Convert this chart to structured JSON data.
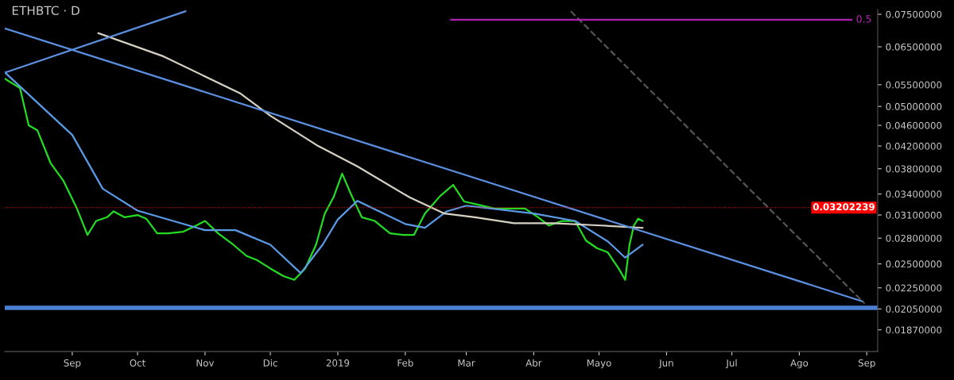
{
  "chart_data": {
    "type": "line",
    "title": "ETHBTC · D",
    "x": [
      "2018-08-01",
      "2018-08-08",
      "2018-08-12",
      "2018-08-16",
      "2018-08-22",
      "2018-08-28",
      "2018-09-03",
      "2018-09-08",
      "2018-09-12",
      "2018-09-17",
      "2018-09-20",
      "2018-09-25",
      "2018-10-01",
      "2018-10-05",
      "2018-10-10",
      "2018-10-15",
      "2018-10-22",
      "2018-10-28",
      "2018-11-01",
      "2018-11-07",
      "2018-11-14",
      "2018-11-20",
      "2018-11-25",
      "2018-12-01",
      "2018-12-07",
      "2018-12-12",
      "2018-12-17",
      "2018-12-22",
      "2018-12-26",
      "2018-12-30",
      "2019-01-03",
      "2019-01-07",
      "2019-01-12",
      "2019-01-18",
      "2019-01-25",
      "2019-01-31",
      "2019-02-05",
      "2019-02-10",
      "2019-02-17",
      "2019-02-23",
      "2019-02-28",
      "2019-03-07",
      "2019-03-14",
      "2019-03-21",
      "2019-03-28",
      "2019-04-03",
      "2019-04-08",
      "2019-04-14",
      "2019-04-20",
      "2019-04-25",
      "2019-04-30",
      "2019-05-05",
      "2019-05-10",
      "2019-05-13",
      "2019-05-15",
      "2019-05-17",
      "2019-05-19",
      "2019-05-21"
    ],
    "series": [
      {
        "color": "#22dd22",
        "values": [
          0.0565,
          0.0542,
          0.046,
          0.045,
          0.039,
          0.036,
          0.032,
          0.0284,
          0.0302,
          0.0307,
          0.0315,
          0.0307,
          0.031,
          0.0305,
          0.0286,
          0.0286,
          0.0288,
          0.0296,
          0.0302,
          0.0286,
          0.0272,
          0.0259,
          0.0254,
          0.0245,
          0.0237,
          0.0233,
          0.0245,
          0.0272,
          0.0312,
          0.0335,
          0.0372,
          0.034,
          0.0307,
          0.0302,
          0.0286,
          0.0284,
          0.0284,
          0.0312,
          0.0337,
          0.0354,
          0.0329,
          0.0324,
          0.0319,
          0.0319,
          0.0319,
          0.0307,
          0.0296,
          0.0302,
          0.0302,
          0.0277,
          0.0268,
          0.0263,
          0.0245,
          0.0233,
          0.0272,
          0.0296,
          0.0305,
          0.0302
        ]
      },
      {
        "color": "#5b9be6",
        "x": [
          "2018-08-01",
          "2018-09-01",
          "2018-09-15",
          "2018-10-01",
          "2018-11-01",
          "2018-11-15",
          "2018-12-01",
          "2018-12-15",
          "2018-12-25",
          "2019-01-01",
          "2019-01-10",
          "2019-02-01",
          "2019-02-10",
          "2019-02-20",
          "2019-03-01",
          "2019-04-01",
          "2019-04-20",
          "2019-05-05",
          "2019-05-13",
          "2019-05-21"
        ],
        "values": [
          0.0581,
          0.0441,
          0.0348,
          0.0316,
          0.029,
          0.029,
          0.0272,
          0.024,
          0.0272,
          0.0304,
          0.033,
          0.0298,
          0.0293,
          0.0315,
          0.0323,
          0.0312,
          0.0302,
          0.0276,
          0.0257,
          0.0272
        ]
      },
      {
        "color": "#d8d2c4",
        "x": [
          "2018-09-13",
          "2018-10-13",
          "2018-11-17",
          "2018-12-01",
          "2018-12-23",
          "2019-01-10",
          "2019-02-03",
          "2019-02-19",
          "2019-03-05",
          "2019-03-23",
          "2019-04-10",
          "2019-05-02",
          "2019-05-21"
        ],
        "values": [
          0.069,
          0.0623,
          0.053,
          0.048,
          0.042,
          0.0384,
          0.0335,
          0.0312,
          0.0307,
          0.0299,
          0.0299,
          0.0296,
          0.0293
        ]
      },
      {
        "color": "#5b8fe0",
        "x": [
          "2018-08-01",
          "2019-08-30"
        ],
        "values": [
          0.0705,
          0.0212
        ]
      },
      {
        "color": "#5b8fe0",
        "x": [
          "2018-08-01",
          "2018-10-23"
        ],
        "values": [
          0.058,
          0.076
        ]
      },
      {
        "color": "#555555",
        "line_style": "dashed",
        "x": [
          "2019-04-18",
          "2019-08-31"
        ],
        "values": [
          0.076,
          0.021
        ]
      },
      {
        "color": "#b020b0",
        "x": [
          "2019-02-22",
          "2019-08-25"
        ],
        "values": [
          0.0732,
          0.0732
        ]
      }
    ],
    "annotations": [
      "0.5"
    ],
    "ref_lines": [
      {
        "axis": "y",
        "value": 0.03202239,
        "label": "0.03202239",
        "color": "#ff0000",
        "line_style": "dotted"
      }
    ],
    "bands": [
      {
        "axis": "y",
        "from": 0.0204,
        "to": 0.0208,
        "color": "#4a7fd4"
      }
    ],
    "log": "y",
    "xlim": [
      "2018-08-01",
      "2019-09-06"
    ],
    "ylim": [
      0.017,
      0.0766
    ],
    "xticks": [
      {
        "value": "2018-09-01",
        "label": "Sep"
      },
      {
        "value": "2018-10-01",
        "label": "Oct"
      },
      {
        "value": "2018-11-01",
        "label": "Nov"
      },
      {
        "value": "2018-12-01",
        "label": "Dic"
      },
      {
        "value": "2019-01-01",
        "label": "2019"
      },
      {
        "value": "2019-02-01",
        "label": "Feb"
      },
      {
        "value": "2019-03-01",
        "label": "Mar"
      },
      {
        "value": "2019-04-01",
        "label": "Abr"
      },
      {
        "value": "2019-05-01",
        "label": "Mayo"
      },
      {
        "value": "2019-06-01",
        "label": "Jun"
      },
      {
        "value": "2019-07-01",
        "label": "Jul"
      },
      {
        "value": "2019-08-01",
        "label": "Ago"
      },
      {
        "value": "2019-09-01",
        "label": "Sep"
      }
    ],
    "yticks": [
      {
        "value": 0.075,
        "label": "0.07500000"
      },
      {
        "value": 0.065,
        "label": "0.06500000"
      },
      {
        "value": 0.055,
        "label": "0.05500000"
      },
      {
        "value": 0.05,
        "label": "0.05000000"
      },
      {
        "value": 0.046,
        "label": "0.04600000"
      },
      {
        "value": 0.042,
        "label": "0.04200000"
      },
      {
        "value": 0.038,
        "label": "0.03800000"
      },
      {
        "value": 0.034,
        "label": "0.03400000"
      },
      {
        "value": 0.031,
        "label": "0.03100000"
      },
      {
        "value": 0.028,
        "label": "0.02800000"
      },
      {
        "value": 0.025,
        "label": "0.02500000"
      },
      {
        "value": 0.0225,
        "label": "0.02250000"
      },
      {
        "value": 0.0205,
        "label": "0.02050000"
      },
      {
        "value": 0.0187,
        "label": "0.01870000"
      }
    ],
    "grid": false,
    "legend": false,
    "marker": "none",
    "line_style": "solid"
  }
}
